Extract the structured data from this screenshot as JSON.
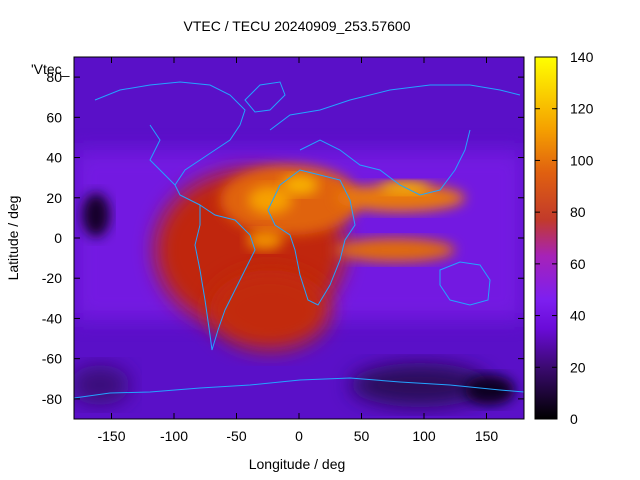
{
  "chart_data": {
    "type": "heatmap",
    "title": "VTEC / TECU 20240909_253.57600",
    "xlabel": "Longitude / deg",
    "ylabel": "Latitude / deg",
    "series_label": "'Vtec_",
    "xlim": [
      -180,
      180
    ],
    "ylim": [
      -90,
      90
    ],
    "x_ticks": [
      -150,
      -100,
      -50,
      0,
      50,
      100,
      150
    ],
    "y_ticks": [
      -80,
      -60,
      -40,
      -20,
      0,
      20,
      40,
      60,
      80
    ],
    "colorbar": {
      "range": [
        0,
        140
      ],
      "ticks": [
        0,
        20,
        40,
        60,
        80,
        100,
        120,
        140
      ],
      "colormap": "gnuplot-pm3d-black-purple-red-orange-yellow"
    },
    "features": [
      {
        "name": "equatorial-anomaly-americas-atlantic",
        "center_lon": -40,
        "center_lat": 5,
        "peak_tecu": 95
      },
      {
        "name": "north-crest-africa-asia",
        "center_lon": 100,
        "center_lat": 20,
        "peak_tecu": 110
      },
      {
        "name": "south-crest-indian-ocean",
        "center_lon": 80,
        "center_lat": -10,
        "peak_tecu": 100
      },
      {
        "name": "background-minimum",
        "peak_tecu": 10
      }
    ]
  },
  "colors": {
    "coastline": "#23a4ff",
    "frame": "#000000"
  }
}
